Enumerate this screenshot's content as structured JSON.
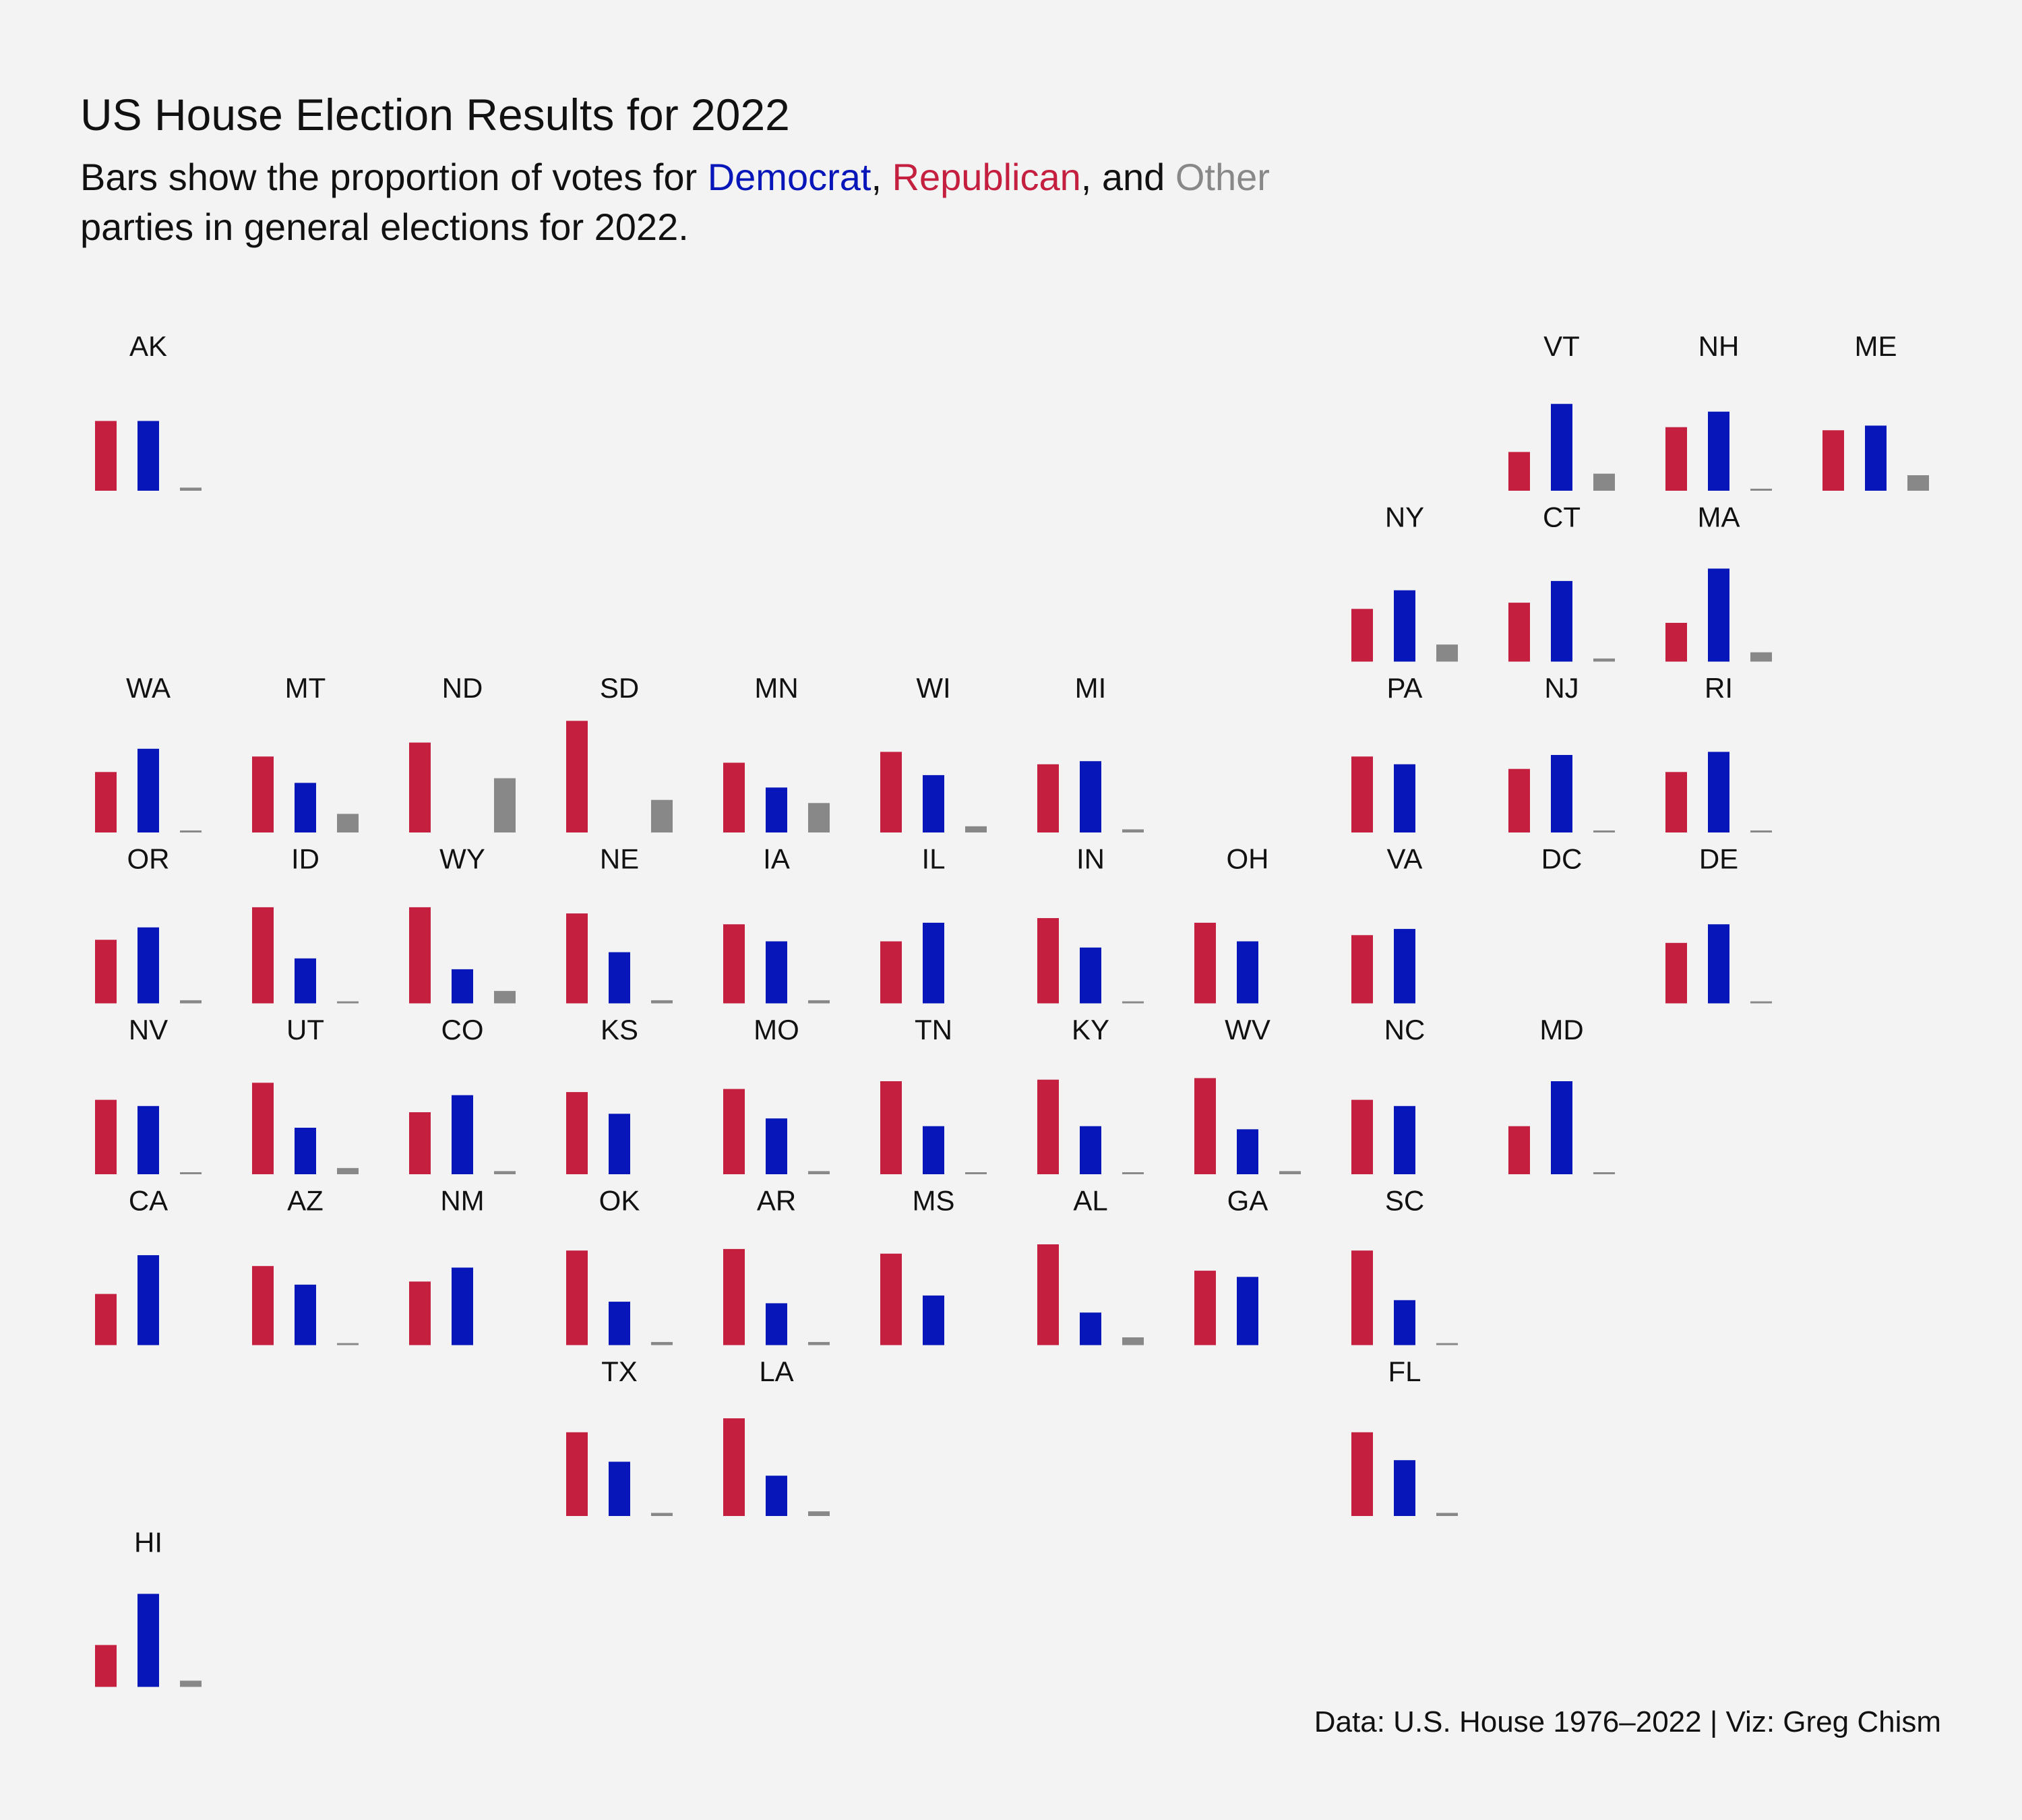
{
  "title": "US House Election Results for 2022",
  "subtitle": {
    "prefix": "Bars show the proportion of votes for ",
    "dem": "Democrat",
    "sep1": ", ",
    "rep": "Republican",
    "sep2": ", and ",
    "oth": "Other",
    "line2": "parties in general elections for 2022."
  },
  "caption": "Data: U.S. House 1976–2022 | Viz: Greg Chism",
  "colors": {
    "rep": "#c41f3f",
    "dem": "#0616b9",
    "other": "#888888"
  },
  "chart_data": {
    "type": "bar",
    "layout": "tile-grid map",
    "series": [
      {
        "name": "Republican",
        "key": "r"
      },
      {
        "name": "Democrat",
        "key": "d"
      },
      {
        "name": "Other",
        "key": "o"
      }
    ],
    "ylim": [
      0,
      1
    ],
    "states": [
      {
        "abbr": "AK",
        "row": 0,
        "col": 0,
        "r": 0.45,
        "d": 0.45,
        "o": 0.02
      },
      {
        "abbr": "VT",
        "row": 0,
        "col": 9,
        "r": 0.25,
        "d": 0.56,
        "o": 0.11
      },
      {
        "abbr": "NH",
        "row": 0,
        "col": 10,
        "r": 0.41,
        "d": 0.51,
        "o": 0.01
      },
      {
        "abbr": "ME",
        "row": 0,
        "col": 11,
        "r": 0.39,
        "d": 0.42,
        "o": 0.1
      },
      {
        "abbr": "NY",
        "row": 1,
        "col": 8,
        "r": 0.34,
        "d": 0.46,
        "o": 0.11
      },
      {
        "abbr": "CT",
        "row": 1,
        "col": 9,
        "r": 0.38,
        "d": 0.52,
        "o": 0.02
      },
      {
        "abbr": "MA",
        "row": 1,
        "col": 10,
        "r": 0.25,
        "d": 0.6,
        "o": 0.06
      },
      {
        "abbr": "WA",
        "row": 2,
        "col": 0,
        "r": 0.39,
        "d": 0.54,
        "o": 0.01
      },
      {
        "abbr": "MT",
        "row": 2,
        "col": 1,
        "r": 0.49,
        "d": 0.32,
        "o": 0.12
      },
      {
        "abbr": "ND",
        "row": 2,
        "col": 2,
        "r": 0.58,
        "d": 0.0,
        "o": 0.35
      },
      {
        "abbr": "SD",
        "row": 2,
        "col": 3,
        "r": 0.72,
        "d": 0.0,
        "o": 0.21
      },
      {
        "abbr": "MN",
        "row": 2,
        "col": 4,
        "r": 0.45,
        "d": 0.29,
        "o": 0.19
      },
      {
        "abbr": "WI",
        "row": 2,
        "col": 5,
        "r": 0.52,
        "d": 0.37,
        "o": 0.04
      },
      {
        "abbr": "MI",
        "row": 2,
        "col": 6,
        "r": 0.44,
        "d": 0.46,
        "o": 0.02
      },
      {
        "abbr": "PA",
        "row": 2,
        "col": 8,
        "r": 0.49,
        "d": 0.44,
        "o": 0.0
      },
      {
        "abbr": "NJ",
        "row": 2,
        "col": 9,
        "r": 0.41,
        "d": 0.5,
        "o": 0.01
      },
      {
        "abbr": "RI",
        "row": 2,
        "col": 10,
        "r": 0.39,
        "d": 0.52,
        "o": 0.01
      },
      {
        "abbr": "OR",
        "row": 3,
        "col": 0,
        "r": 0.41,
        "d": 0.49,
        "o": 0.02
      },
      {
        "abbr": "ID",
        "row": 3,
        "col": 1,
        "r": 0.62,
        "d": 0.29,
        "o": 0.01
      },
      {
        "abbr": "WY",
        "row": 3,
        "col": 2,
        "r": 0.62,
        "d": 0.22,
        "o": 0.08
      },
      {
        "abbr": "NE",
        "row": 3,
        "col": 3,
        "r": 0.58,
        "d": 0.33,
        "o": 0.02
      },
      {
        "abbr": "IA",
        "row": 3,
        "col": 4,
        "r": 0.51,
        "d": 0.4,
        "o": 0.02
      },
      {
        "abbr": "IL",
        "row": 3,
        "col": 5,
        "r": 0.4,
        "d": 0.52,
        "o": 0.0
      },
      {
        "abbr": "IN",
        "row": 3,
        "col": 6,
        "r": 0.55,
        "d": 0.36,
        "o": 0.01
      },
      {
        "abbr": "OH",
        "row": 3,
        "col": 7,
        "r": 0.52,
        "d": 0.4,
        "o": 0.0
      },
      {
        "abbr": "VA",
        "row": 3,
        "col": 8,
        "r": 0.44,
        "d": 0.48,
        "o": 0.0
      },
      {
        "abbr": "DC",
        "row": 3,
        "col": 9,
        "r": 0.0,
        "d": 0.0,
        "o": 0.0
      },
      {
        "abbr": "DE",
        "row": 3,
        "col": 10,
        "r": 0.39,
        "d": 0.51,
        "o": 0.01
      },
      {
        "abbr": "NV",
        "row": 4,
        "col": 0,
        "r": 0.48,
        "d": 0.44,
        "o": 0.01
      },
      {
        "abbr": "UT",
        "row": 4,
        "col": 1,
        "r": 0.59,
        "d": 0.3,
        "o": 0.04
      },
      {
        "abbr": "CO",
        "row": 4,
        "col": 2,
        "r": 0.4,
        "d": 0.51,
        "o": 0.02
      },
      {
        "abbr": "KS",
        "row": 4,
        "col": 3,
        "r": 0.53,
        "d": 0.39,
        "o": 0.0
      },
      {
        "abbr": "MO",
        "row": 4,
        "col": 4,
        "r": 0.55,
        "d": 0.36,
        "o": 0.02
      },
      {
        "abbr": "TN",
        "row": 4,
        "col": 5,
        "r": 0.6,
        "d": 0.31,
        "o": 0.01
      },
      {
        "abbr": "KY",
        "row": 4,
        "col": 6,
        "r": 0.61,
        "d": 0.31,
        "o": 0.01
      },
      {
        "abbr": "WV",
        "row": 4,
        "col": 7,
        "r": 0.62,
        "d": 0.29,
        "o": 0.02
      },
      {
        "abbr": "NC",
        "row": 4,
        "col": 8,
        "r": 0.48,
        "d": 0.44,
        "o": 0.0
      },
      {
        "abbr": "MD",
        "row": 4,
        "col": 9,
        "r": 0.31,
        "d": 0.6,
        "o": 0.01
      },
      {
        "abbr": "CA",
        "row": 5,
        "col": 0,
        "r": 0.33,
        "d": 0.58,
        "o": 0.0
      },
      {
        "abbr": "AZ",
        "row": 5,
        "col": 1,
        "r": 0.51,
        "d": 0.39,
        "o": 0.01
      },
      {
        "abbr": "NM",
        "row": 5,
        "col": 2,
        "r": 0.41,
        "d": 0.5,
        "o": 0.0
      },
      {
        "abbr": "OK",
        "row": 5,
        "col": 3,
        "r": 0.61,
        "d": 0.28,
        "o": 0.02
      },
      {
        "abbr": "AR",
        "row": 5,
        "col": 4,
        "r": 0.62,
        "d": 0.27,
        "o": 0.02
      },
      {
        "abbr": "MS",
        "row": 5,
        "col": 5,
        "r": 0.59,
        "d": 0.32,
        "o": 0.0
      },
      {
        "abbr": "AL",
        "row": 5,
        "col": 6,
        "r": 0.65,
        "d": 0.21,
        "o": 0.05
      },
      {
        "abbr": "GA",
        "row": 5,
        "col": 7,
        "r": 0.48,
        "d": 0.44,
        "o": 0.0
      },
      {
        "abbr": "SC",
        "row": 5,
        "col": 8,
        "r": 0.61,
        "d": 0.29,
        "o": 0.01
      },
      {
        "abbr": "TX",
        "row": 6,
        "col": 3,
        "r": 0.54,
        "d": 0.35,
        "o": 0.02
      },
      {
        "abbr": "LA",
        "row": 6,
        "col": 4,
        "r": 0.63,
        "d": 0.26,
        "o": 0.03
      },
      {
        "abbr": "FL",
        "row": 6,
        "col": 8,
        "r": 0.54,
        "d": 0.36,
        "o": 0.02
      },
      {
        "abbr": "HI",
        "row": 7,
        "col": 0,
        "r": 0.27,
        "d": 0.6,
        "o": 0.04
      }
    ]
  }
}
